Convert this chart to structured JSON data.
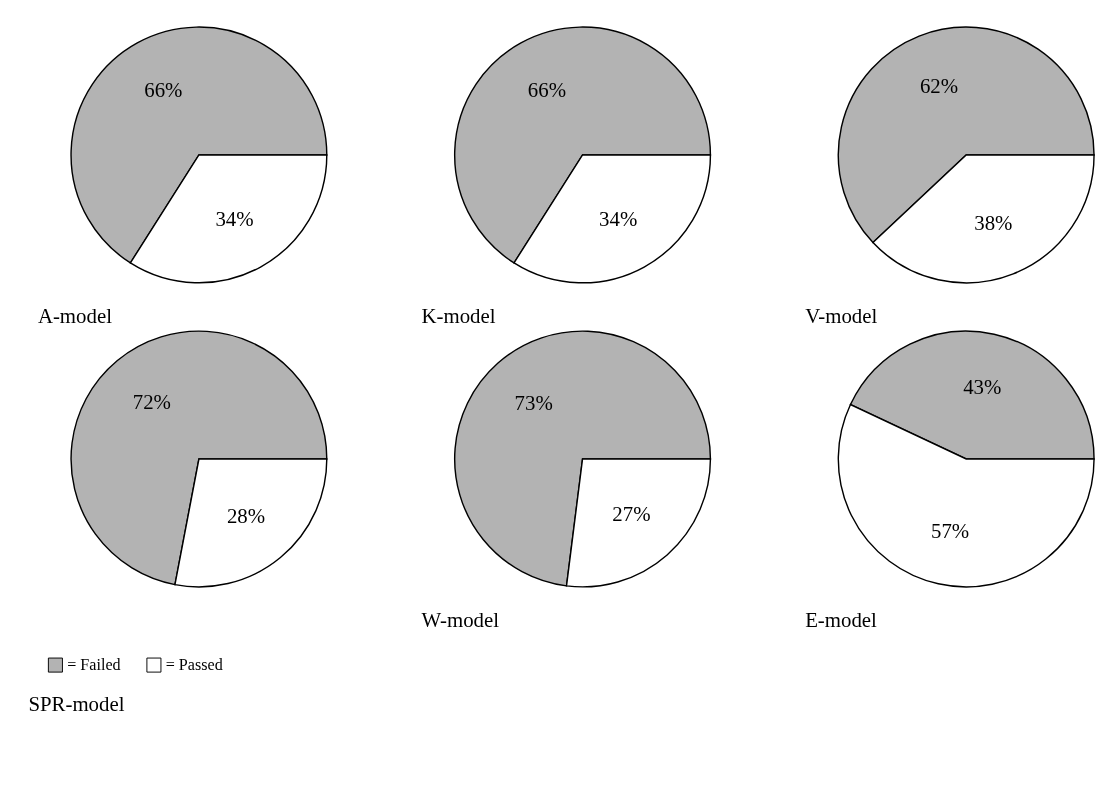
{
  "chart_data": [
    {
      "type": "pie",
      "title": "A-model",
      "values": [
        66,
        34
      ],
      "value_labels": [
        "66%",
        "34%"
      ],
      "colors": [
        "#b3b3b3",
        "#ffffff"
      ]
    },
    {
      "type": "pie",
      "title": "K-model",
      "values": [
        66,
        34
      ],
      "value_labels": [
        "66%",
        "34%"
      ],
      "colors": [
        "#b3b3b3",
        "#ffffff"
      ]
    },
    {
      "type": "pie",
      "title": "V-model",
      "values": [
        62,
        38
      ],
      "value_labels": [
        "62%",
        "38%"
      ],
      "colors": [
        "#b3b3b3",
        "#ffffff"
      ]
    },
    {
      "type": "pie",
      "title": "SPR-model",
      "categories": [
        "= Failed",
        "= Passed"
      ],
      "values": [
        72,
        28
      ],
      "value_labels": [
        "72%",
        "28%"
      ],
      "colors": [
        "#b3b3b3",
        "#ffffff"
      ],
      "legend": "bottom left"
    },
    {
      "type": "pie",
      "title": "W-model",
      "values": [
        73,
        27
      ],
      "value_labels": [
        "73%",
        "27%"
      ],
      "colors": [
        "#b3b3b3",
        "#ffffff"
      ]
    },
    {
      "type": "pie",
      "title": "E-model",
      "values": [
        43,
        57
      ],
      "value_labels": [
        "43%",
        "57%"
      ],
      "colors": [
        "#b3b3b3",
        "#ffffff"
      ]
    }
  ]
}
